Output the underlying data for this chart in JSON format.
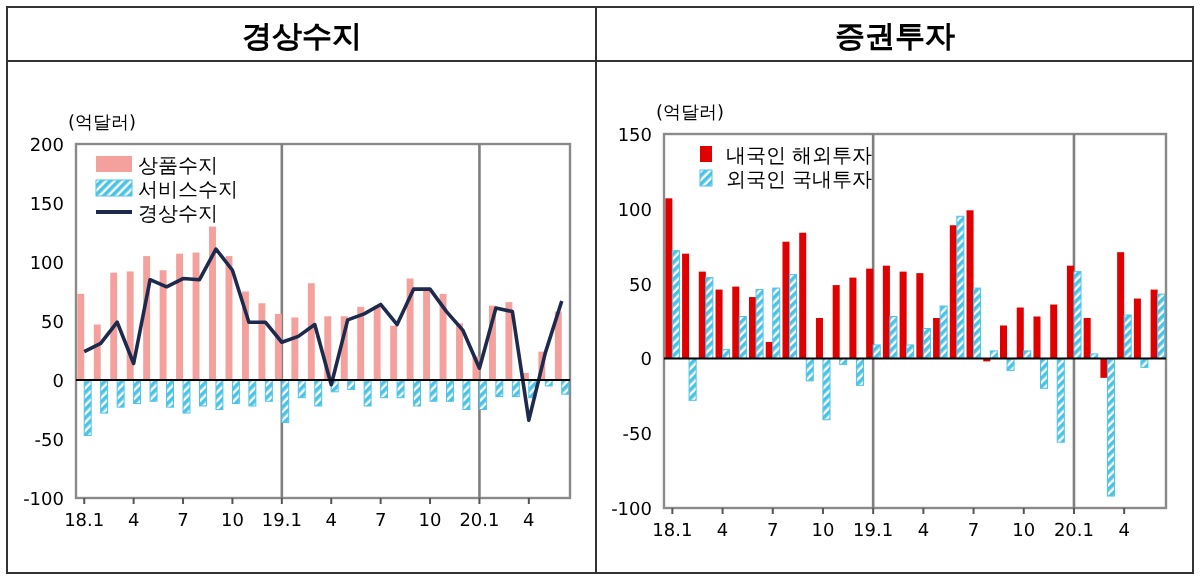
{
  "chart_data": [
    {
      "type": "bar",
      "title": "경상수지",
      "ylabel": "(억달러)",
      "categories": [
        "18.1",
        null,
        null,
        "4",
        null,
        null,
        "7",
        null,
        null,
        "10",
        null,
        null,
        "19.1",
        null,
        null,
        "4",
        null,
        null,
        "7",
        null,
        null,
        "10",
        null,
        null,
        "20.1",
        null,
        null,
        "4",
        null,
        null
      ],
      "series": [
        {
          "name": "상품수지",
          "color": "#f4a09c",
          "values": [
            73,
            47,
            91,
            92,
            105,
            93,
            107,
            108,
            130,
            105,
            75,
            65,
            56,
            53,
            82,
            54,
            54,
            62,
            63,
            46,
            86,
            77,
            73,
            48,
            20,
            63,
            66,
            6,
            24,
            58
          ]
        },
        {
          "name": "서비스수지",
          "color": "#4bc3e6",
          "values": [
            -47,
            -28,
            -23,
            -20,
            -18,
            -23,
            -28,
            -22,
            -25,
            -20,
            -22,
            -18,
            -36,
            -15,
            -22,
            -10,
            -8,
            -22,
            -15,
            -15,
            -22,
            -18,
            -18,
            -25,
            -25,
            -14,
            -14,
            -15,
            -5,
            -12
          ]
        },
        {
          "name": "경상수지",
          "type": "line",
          "color": "#1c2a4e",
          "values": [
            24,
            31,
            49,
            14,
            85,
            79,
            86,
            85,
            111,
            93,
            49,
            49,
            32,
            37,
            47,
            -4,
            51,
            56,
            64,
            47,
            77,
            77,
            58,
            42,
            10,
            61,
            58,
            -34,
            23,
            67
          ]
        }
      ],
      "ylim": [
        -100,
        200
      ],
      "yticks": [
        -100,
        -50,
        0,
        50,
        100,
        150,
        200
      ],
      "grid": false,
      "legend": "top left",
      "marker": "none",
      "ref_lines": [
        {
          "axis": "x",
          "value": "19.1",
          "color": "#7f7f7f"
        },
        {
          "axis": "x",
          "value": "20.1",
          "color": "#7f7f7f"
        }
      ]
    },
    {
      "type": "bar",
      "title": "증권투자",
      "ylabel": "(억달러)",
      "categories": [
        "18.1",
        null,
        null,
        "4",
        null,
        null,
        "7",
        null,
        null,
        "10",
        null,
        null,
        "19.1",
        null,
        null,
        "4",
        null,
        null,
        "7",
        null,
        null,
        "10",
        null,
        null,
        "20.1",
        null,
        null,
        "4",
        null,
        null
      ],
      "series": [
        {
          "name": "내국인 해외투자",
          "color": "#e00000",
          "values": [
            107,
            70,
            58,
            46,
            48,
            41,
            11,
            78,
            84,
            27,
            49,
            54,
            60,
            62,
            58,
            57,
            27,
            89,
            99,
            -2,
            22,
            34,
            28,
            36,
            62,
            27,
            -13,
            71,
            40,
            46
          ]
        },
        {
          "name": "외국인 국내투자",
          "color": "#4bc3e6",
          "values": [
            72,
            -28,
            54,
            6,
            28,
            46,
            47,
            56,
            -15,
            -41,
            -4,
            -18,
            9,
            28,
            9,
            20,
            35,
            95,
            47,
            5,
            -8,
            5,
            -20,
            -56,
            58,
            3,
            -92,
            29,
            -6,
            43
          ]
        }
      ],
      "ylim": [
        -100,
        150
      ],
      "yticks": [
        -100,
        -50,
        0,
        50,
        100,
        150
      ],
      "grid": false,
      "legend": "top left",
      "ref_lines": [
        {
          "axis": "x",
          "value": "19.1",
          "color": "#7f7f7f"
        },
        {
          "axis": "x",
          "value": "20.1",
          "color": "#7f7f7f"
        }
      ]
    }
  ]
}
